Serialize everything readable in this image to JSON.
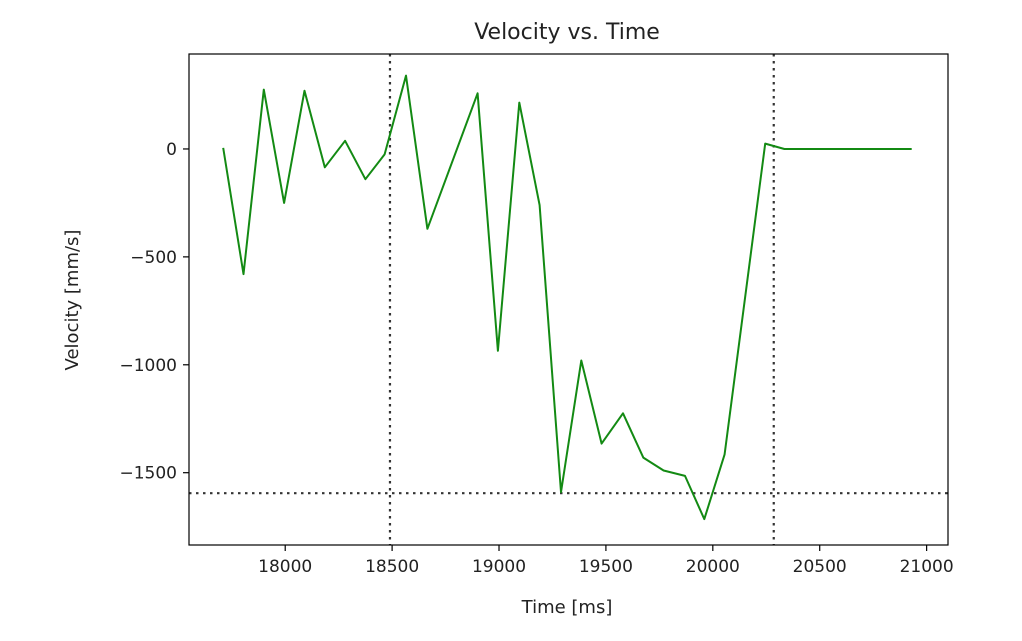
{
  "chart_data": {
    "type": "line",
    "title": "Velocity vs. Time",
    "xlabel": "Time [ms]",
    "ylabel": "Velocity [mm/s]",
    "xlim": [
      17550,
      21100
    ],
    "ylim": [
      -1835,
      440
    ],
    "xticks": [
      18000,
      18500,
      19000,
      19500,
      20000,
      20500,
      21000
    ],
    "yticks": [
      0,
      -500,
      -1000,
      -1500
    ],
    "xtick_labels": [
      "18000",
      "18500",
      "19000",
      "19500",
      "20000",
      "20500",
      "21000"
    ],
    "ytick_labels": [
      "0",
      "−500",
      "−1000",
      "−1500"
    ],
    "grid": false,
    "series": [
      {
        "color": "#138a13",
        "x": [
          17710,
          17805,
          17900,
          17995,
          18090,
          18185,
          18280,
          18375,
          18465,
          18565,
          18665,
          18900,
          18995,
          19095,
          19190,
          19290,
          19385,
          19480,
          19580,
          19675,
          19770,
          19870,
          19960,
          20055,
          20245,
          20335,
          20930
        ],
        "y": [
          5,
          -580,
          275,
          -250,
          270,
          -85,
          38,
          -140,
          -25,
          340,
          -370,
          258,
          -935,
          215,
          -260,
          -1590,
          -980,
          -1365,
          -1225,
          -1430,
          -1490,
          -1515,
          -1715,
          -1415,
          25,
          0,
          0
        ]
      }
    ],
    "reference_lines": [
      {
        "orientation": "vertical",
        "value": 18490,
        "color": "#333333",
        "style": "dotted"
      },
      {
        "orientation": "vertical",
        "value": 20285,
        "color": "#333333",
        "style": "dotted"
      },
      {
        "orientation": "horizontal",
        "value": -1595,
        "color": "#333333",
        "style": "dotted"
      }
    ]
  }
}
